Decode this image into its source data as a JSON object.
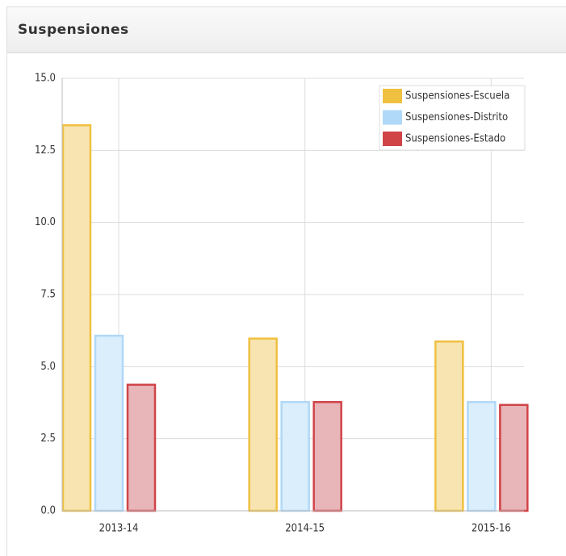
{
  "header": {
    "title": "Suspensiones"
  },
  "chart_data": {
    "type": "bar",
    "categories": [
      "2013-14",
      "2014-15",
      "2015-16"
    ],
    "series": [
      {
        "name": "Suspensiones-Escuela",
        "color": "#f0c040",
        "fill": "#f7e4b0",
        "values": [
          13.4,
          6.0,
          5.9
        ]
      },
      {
        "name": "Suspensiones-Distrito",
        "color": "#b0d8f8",
        "fill": "#daeefb",
        "values": [
          6.1,
          3.8,
          3.8
        ]
      },
      {
        "name": "Suspensiones-Estado",
        "color": "#d04448",
        "fill": "#e8b5b8",
        "values": [
          4.4,
          3.8,
          3.7
        ]
      }
    ],
    "ylim": [
      0,
      15
    ],
    "yticks": [
      {
        "value": 0,
        "label": "0.0"
      },
      2.5,
      {
        "value": 5,
        "label": "5.0"
      },
      7.5,
      {
        "value": 10,
        "label": "10.0"
      },
      12.5,
      {
        "value": 15,
        "label": "15.0"
      }
    ],
    "grid": true,
    "legend": "top-right"
  }
}
